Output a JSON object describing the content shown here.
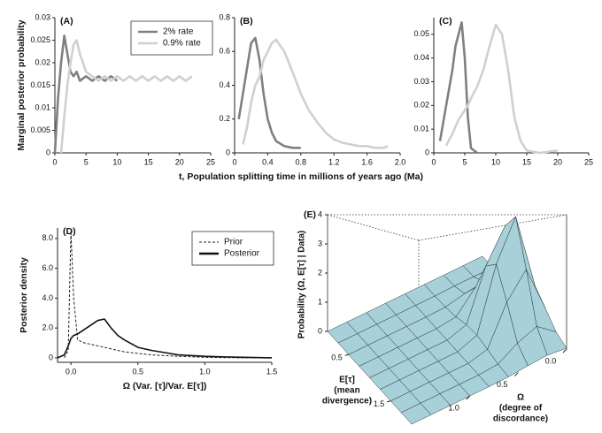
{
  "chart_data": [
    {
      "type": "line",
      "panel": "(A)",
      "ylabel": "Marginal posterior probability",
      "x": [
        0,
        0.5,
        1,
        1.5,
        2,
        2.5,
        3,
        3.5,
        4,
        5,
        6,
        7,
        8,
        9,
        10,
        11,
        12,
        13,
        14,
        15,
        16,
        17,
        18,
        19,
        20,
        21,
        22
      ],
      "series": [
        {
          "name": "2% rate",
          "color": "#808080",
          "values": [
            0,
            0.012,
            0.02,
            0.026,
            0.022,
            0.018,
            0.017,
            0.018,
            0.016,
            0.017,
            0.016,
            0.017,
            0.016,
            0.017,
            0.016,
            null,
            null,
            null,
            null,
            null,
            null,
            null,
            null,
            null,
            null,
            null,
            null
          ]
        },
        {
          "name": "0.9% rate",
          "color": "#d0d0d0",
          "values": [
            null,
            null,
            0,
            0.008,
            0.015,
            0.02,
            0.024,
            0.025,
            0.022,
            0.018,
            0.017,
            0.016,
            0.017,
            0.016,
            0.017,
            0.016,
            0.017,
            0.016,
            0.017,
            0.016,
            0.017,
            0.016,
            0.017,
            0.016,
            0.017,
            0.016,
            0.017
          ]
        }
      ],
      "xlim": [
        0,
        25
      ],
      "xticks": [
        0,
        5,
        10,
        15,
        20,
        25
      ],
      "ylim": [
        0,
        0.03
      ],
      "yticks": [
        0,
        0.005,
        0.01,
        0.015,
        0.02,
        0.025,
        0.03
      ],
      "legend": "upper right"
    },
    {
      "type": "line",
      "panel": "(B)",
      "xlabel": "t, Population splitting time in millions of years ago (Ma)",
      "x": [
        0,
        0.05,
        0.1,
        0.15,
        0.2,
        0.25,
        0.3,
        0.35,
        0.4,
        0.45,
        0.5,
        0.6,
        0.7,
        0.8,
        0.9,
        1.0,
        1.1,
        1.2,
        1.3,
        1.4,
        1.5,
        1.6,
        1.7,
        1.8,
        1.85
      ],
      "series": [
        {
          "color": "#808080",
          "values": [
            null,
            0.2,
            0.35,
            0.5,
            0.65,
            0.68,
            0.55,
            0.35,
            0.2,
            0.12,
            0.07,
            0.04,
            0.03,
            0.03,
            null,
            null,
            null,
            null,
            null,
            null,
            null,
            null,
            null,
            null,
            null
          ]
        },
        {
          "color": "#d0d0d0",
          "values": [
            null,
            null,
            0.05,
            0.15,
            0.3,
            0.4,
            0.45,
            0.55,
            0.6,
            0.65,
            0.67,
            0.6,
            0.48,
            0.35,
            0.25,
            0.18,
            0.12,
            0.08,
            0.06,
            0.05,
            0.04,
            0.04,
            0.03,
            0.03,
            0.04
          ]
        }
      ],
      "xlim": [
        0,
        2
      ],
      "xticks": [
        0,
        0.4,
        0.8,
        1.2,
        1.6,
        {
          "value": 2,
          "label": "2.0"
        }
      ],
      "ylim": [
        0,
        0.8
      ],
      "yticks": [
        0,
        0.2,
        0.4,
        0.6,
        0.8
      ]
    },
    {
      "type": "line",
      "panel": "(C)",
      "x": [
        0,
        1,
        2,
        3,
        3.5,
        4,
        4.5,
        5,
        5.5,
        6,
        7,
        8,
        9,
        10,
        11,
        12,
        13,
        14,
        15,
        17,
        20
      ],
      "series": [
        {
          "color": "#808080",
          "values": [
            null,
            0.005,
            0.02,
            0.035,
            0.045,
            0.05,
            0.055,
            0.04,
            0.015,
            0.002,
            0,
            null,
            null,
            null,
            null,
            null,
            null,
            null,
            null,
            null,
            null
          ]
        },
        {
          "color": "#d0d0d0",
          "values": [
            null,
            null,
            0.003,
            0.008,
            0.011,
            0.014,
            0.016,
            0.018,
            0.02,
            0.023,
            0.028,
            0.035,
            0.045,
            0.054,
            0.05,
            0.035,
            0.015,
            0.005,
            0.001,
            0,
            0.001
          ]
        }
      ],
      "xlim": [
        0,
        25
      ],
      "xticks": [
        0,
        5,
        10,
        15,
        20,
        25
      ],
      "ylim": [
        0,
        0.057
      ],
      "yticks": [
        0,
        0.01,
        0.02,
        0.03,
        0.04,
        0.05
      ]
    },
    {
      "type": "line",
      "panel": "(D)",
      "ylabel": "Posterior density",
      "xlabel": "Ω (Var. [τ]/Var. E[τ])",
      "x": [
        -0.1,
        -0.05,
        -0.02,
        0,
        0.02,
        0.05,
        0.1,
        0.15,
        0.2,
        0.25,
        0.3,
        0.35,
        0.4,
        0.5,
        0.6,
        0.7,
        0.8,
        1.0,
        1.2,
        1.5
      ],
      "series": [
        {
          "name": "Prior",
          "color": "#222222",
          "dash": true,
          "values": [
            null,
            0,
            0.5,
            8.5,
            4,
            1.2,
            1.0,
            0.9,
            0.8,
            0.7,
            0.6,
            0.5,
            0.4,
            0.3,
            0.2,
            0.15,
            0.1,
            0.03,
            0.01,
            0
          ]
        },
        {
          "name": "Posterior",
          "color": "#111111",
          "values": [
            0,
            0.2,
            0.8,
            1.3,
            1.5,
            1.6,
            1.9,
            2.2,
            2.5,
            2.6,
            2.0,
            1.5,
            1.2,
            0.7,
            0.5,
            0.35,
            0.2,
            0.1,
            0.05,
            0
          ]
        }
      ],
      "xlim": [
        -0.1,
        1.5
      ],
      "xticks": [
        {
          "value": 0,
          "label": "0.0"
        },
        {
          "value": 0.5,
          "label": "0.5"
        },
        {
          "value": 1,
          "label": "1.0"
        },
        {
          "value": 1.5,
          "label": "1.5"
        }
      ],
      "ylim": [
        -0.3,
        8.7
      ],
      "yticks": [
        0,
        {
          "value": 2,
          "label": "2.0"
        },
        {
          "value": 4,
          "label": "4.0"
        },
        {
          "value": 6,
          "label": "6.0"
        },
        {
          "value": 8,
          "label": "8.0"
        }
      ],
      "legend": "upper right"
    },
    {
      "type": "surface",
      "panel": "(E)",
      "color": "#a8d0d8",
      "zlabel": "Probability (Ω, E[τ] | Data)",
      "xlabel": [
        "Ω",
        "(degree of",
        "discordance)"
      ],
      "ylabel": [
        "E[τ]",
        "(mean",
        "divergence)"
      ],
      "x": [
        0,
        0.2,
        0.4,
        0.6,
        0.8,
        1.0,
        1.2,
        1.4,
        1.6
      ],
      "y": [
        0,
        0.25,
        0.5,
        0.75,
        1.0,
        1.25,
        1.5,
        1.75,
        2.0
      ],
      "z": [
        [
          0,
          0.01,
          0.06,
          0.31,
          0.78,
          0.97,
          0.59,
          0.19,
          0.03
        ],
        [
          0,
          0.02,
          0.24,
          1.19,
          2.96,
          3.67,
          2.26,
          0.7,
          0.11
        ],
        [
          0,
          0.02,
          0.16,
          0.76,
          1.9,
          2.36,
          1.45,
          0.45,
          0.07
        ],
        [
          0,
          0,
          0.02,
          0.08,
          0.21,
          0.25,
          0.16,
          0.05,
          0.01
        ],
        [
          0,
          0,
          0,
          0,
          0,
          0,
          0,
          0,
          0
        ],
        [
          0,
          0,
          0,
          0,
          0,
          0,
          0,
          0,
          0
        ],
        [
          0,
          0,
          0,
          0,
          0,
          0,
          0,
          0,
          0
        ],
        [
          0,
          0,
          0,
          0,
          0,
          0,
          0,
          0,
          0
        ],
        [
          0,
          0,
          0,
          0,
          0,
          0,
          0,
          0,
          0
        ]
      ],
      "xlim": [
        0,
        1.6
      ],
      "xticks": [
        {
          "value": 0,
          "label": "0.0"
        },
        {
          "value": 0.5,
          "label": "0.5"
        },
        {
          "value": 1,
          "label": "1.0"
        }
      ],
      "ylim": [
        0,
        2
      ],
      "yticks": [
        0.5,
        1.5
      ],
      "zlim": [
        0,
        4
      ],
      "zticks": [
        0,
        1,
        2,
        3,
        4
      ]
    }
  ]
}
